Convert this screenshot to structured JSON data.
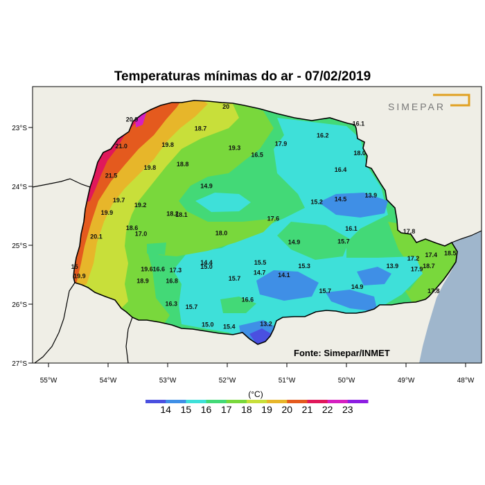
{
  "title": "Temperaturas mínimas do ar - 07/02/2019",
  "logo_text": "SIMEPAR",
  "source": "Fonte: Simepar/INMET",
  "unit": "(°C)",
  "lon_ticks": [
    "55°W",
    "54°W",
    "53°W",
    "52°W",
    "51°W",
    "50°W",
    "49°W",
    "48°W"
  ],
  "lat_ticks": [
    "23°S",
    "24°S",
    "25°S",
    "26°S",
    "27°S"
  ],
  "colorbar": {
    "labels": [
      "14",
      "15",
      "16",
      "17",
      "18",
      "19",
      "20",
      "21",
      "22",
      "23"
    ],
    "colors": [
      "#4a50e0",
      "#3f8fe6",
      "#3ee0d9",
      "#43d977",
      "#79d83c",
      "#c8df3a",
      "#e7b62a",
      "#e45a1e",
      "#e0185a",
      "#d61fc0",
      "#8d1ee2"
    ]
  },
  "colors": {
    "land_outside": "#efeee6",
    "ocean": "#9fb6cc",
    "logo": "#e0a020"
  },
  "stations": [
    {
      "v": "20.9",
      "lon": -53.7,
      "lat": -22.9
    },
    {
      "v": "20",
      "lon": -52.08,
      "lat": -22.68
    },
    {
      "v": "18.7",
      "lon": -52.55,
      "lat": -23.05
    },
    {
      "v": "21.0",
      "lon": -53.88,
      "lat": -23.35
    },
    {
      "v": "19.8",
      "lon": -53.1,
      "lat": -23.33
    },
    {
      "v": "19.3",
      "lon": -51.98,
      "lat": -23.38
    },
    {
      "v": "17.9",
      "lon": -51.2,
      "lat": -23.31
    },
    {
      "v": "16.2",
      "lon": -50.5,
      "lat": -23.17
    },
    {
      "v": "16.1",
      "lon": -49.9,
      "lat": -22.97
    },
    {
      "v": "18.8",
      "lon": -52.85,
      "lat": -23.66
    },
    {
      "v": "19.8",
      "lon": -53.4,
      "lat": -23.72
    },
    {
      "v": "16.5",
      "lon": -51.6,
      "lat": -23.5
    },
    {
      "v": "18.0",
      "lon": -49.88,
      "lat": -23.47
    },
    {
      "v": "21.5",
      "lon": -54.05,
      "lat": -23.85
    },
    {
      "v": "16.4",
      "lon": -50.2,
      "lat": -23.75
    },
    {
      "v": "14.9",
      "lon": -52.45,
      "lat": -24.03
    },
    {
      "v": "19.7",
      "lon": -53.92,
      "lat": -24.27
    },
    {
      "v": "19.2",
      "lon": -53.56,
      "lat": -24.35
    },
    {
      "v": "15.2",
      "lon": -50.6,
      "lat": -24.3
    },
    {
      "v": "14.5",
      "lon": -50.2,
      "lat": -24.25
    },
    {
      "v": "13.9",
      "lon": -49.69,
      "lat": -24.19
    },
    {
      "v": "19.9",
      "lon": -54.12,
      "lat": -24.48
    },
    {
      "v": "18.2",
      "lon": -53.02,
      "lat": -24.5
    },
    {
      "v": "18.1",
      "lon": -52.87,
      "lat": -24.52
    },
    {
      "v": "17.6",
      "lon": -51.33,
      "lat": -24.58
    },
    {
      "v": "18.6",
      "lon": -53.7,
      "lat": -24.74
    },
    {
      "v": "17.0",
      "lon": -53.55,
      "lat": -24.84
    },
    {
      "v": "18.0",
      "lon": -52.2,
      "lat": -24.83
    },
    {
      "v": "16.1",
      "lon": -50.02,
      "lat": -24.75
    },
    {
      "v": "17.8",
      "lon": -49.05,
      "lat": -24.8
    },
    {
      "v": "20.1",
      "lon": -54.3,
      "lat": -24.89
    },
    {
      "v": "14.9",
      "lon": -50.98,
      "lat": -24.98
    },
    {
      "v": "15.7",
      "lon": -50.15,
      "lat": -24.97
    },
    {
      "v": "17.2",
      "lon": -48.98,
      "lat": -25.26
    },
    {
      "v": "17.4",
      "lon": -48.68,
      "lat": -25.2
    },
    {
      "v": "14.4",
      "lon": -52.45,
      "lat": -25.33
    },
    {
      "v": "15.0",
      "lon": -52.45,
      "lat": -25.4
    },
    {
      "v": "15.5",
      "lon": -51.55,
      "lat": -25.33
    },
    {
      "v": "15.3",
      "lon": -50.81,
      "lat": -25.39
    },
    {
      "v": "13.9",
      "lon": -49.33,
      "lat": -25.39
    },
    {
      "v": "18.7",
      "lon": -48.72,
      "lat": -25.39
    },
    {
      "v": "18.5",
      "lon": -48.36,
      "lat": -25.17
    },
    {
      "v": "17.9",
      "lon": -48.92,
      "lat": -25.44
    },
    {
      "v": "19.6",
      "lon": -53.45,
      "lat": -25.44
    },
    {
      "v": "16.6",
      "lon": -53.25,
      "lat": -25.44
    },
    {
      "v": "17.3",
      "lon": -52.97,
      "lat": -25.46
    },
    {
      "v": "14.7",
      "lon": -51.56,
      "lat": -25.5
    },
    {
      "v": "14.1",
      "lon": -51.15,
      "lat": -25.54
    },
    {
      "v": "15.7",
      "lon": -51.98,
      "lat": -25.6
    },
    {
      "v": "18.9",
      "lon": -53.52,
      "lat": -25.64
    },
    {
      "v": "16.8",
      "lon": -53.03,
      "lat": -25.64
    },
    {
      "v": "14.9",
      "lon": -49.92,
      "lat": -25.74
    },
    {
      "v": "15.7",
      "lon": -50.46,
      "lat": -25.81
    },
    {
      "v": "17.8",
      "lon": -48.64,
      "lat": -25.81
    },
    {
      "v": "16.6",
      "lon": -51.76,
      "lat": -25.96
    },
    {
      "v": "16.3",
      "lon": -53.04,
      "lat": -26.03
    },
    {
      "v": "15.7",
      "lon": -52.7,
      "lat": -26.08
    },
    {
      "v": "13.2",
      "lon": -51.45,
      "lat": -26.37
    },
    {
      "v": "15.0",
      "lon": -52.43,
      "lat": -26.38
    },
    {
      "v": "15.4",
      "lon": -52.07,
      "lat": -26.42
    },
    {
      "v": "15",
      "lon": -54.62,
      "lat": -25.4
    },
    {
      "v": "19.9",
      "lon": -54.58,
      "lat": -25.56
    }
  ]
}
